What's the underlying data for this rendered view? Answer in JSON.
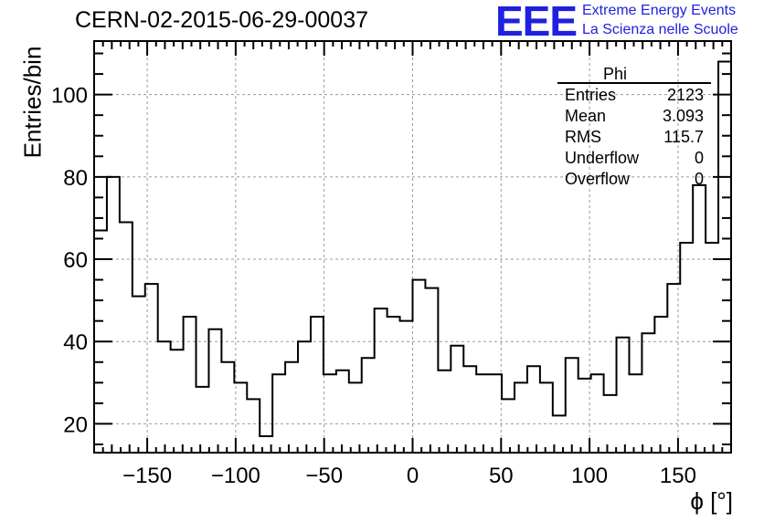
{
  "header": {
    "run_title": "CERN-02-2015-06-29-00037",
    "logo_text": "EEE",
    "logo_line1": "Extreme Energy Events",
    "logo_line2": "La Scienza nelle Scuole",
    "logo_color": "#2020e0"
  },
  "stats": {
    "title": "Phi",
    "rows": [
      {
        "name": "Entries",
        "value": "2123"
      },
      {
        "name": "Mean",
        "value": "3.093"
      },
      {
        "name": "RMS",
        "value": "115.7"
      },
      {
        "name": "Underflow",
        "value": "0"
      },
      {
        "name": "Overflow",
        "value": "0"
      }
    ]
  },
  "chart_data": {
    "type": "histogram",
    "title": "CERN-02-2015-06-29-00037",
    "xlabel": "ϕ [°]",
    "ylabel": "Entries/bin",
    "xlim": [
      -180,
      180
    ],
    "ylim": [
      13,
      113
    ],
    "bin_width": 7.2,
    "bin_edges_start": -180,
    "values": [
      67,
      80,
      69,
      51,
      54,
      40,
      38,
      46,
      29,
      43,
      35,
      30,
      26,
      17,
      32,
      35,
      40,
      46,
      32,
      33,
      30,
      36,
      48,
      46,
      45,
      55,
      53,
      33,
      39,
      34,
      32,
      32,
      26,
      30,
      34,
      30,
      22,
      36,
      31,
      32,
      27,
      41,
      32,
      42,
      46,
      54,
      64,
      78,
      64,
      108
    ],
    "xticks": [
      -150,
      -100,
      -50,
      0,
      50,
      100,
      150
    ],
    "xtick_labels": [
      "−150",
      "−100",
      "−50",
      "0",
      "50",
      "100",
      "150"
    ],
    "yticks": [
      20,
      40,
      60,
      80,
      100
    ],
    "ytick_labels": [
      "20",
      "40",
      "60",
      "80",
      "100"
    ],
    "grid": true
  }
}
